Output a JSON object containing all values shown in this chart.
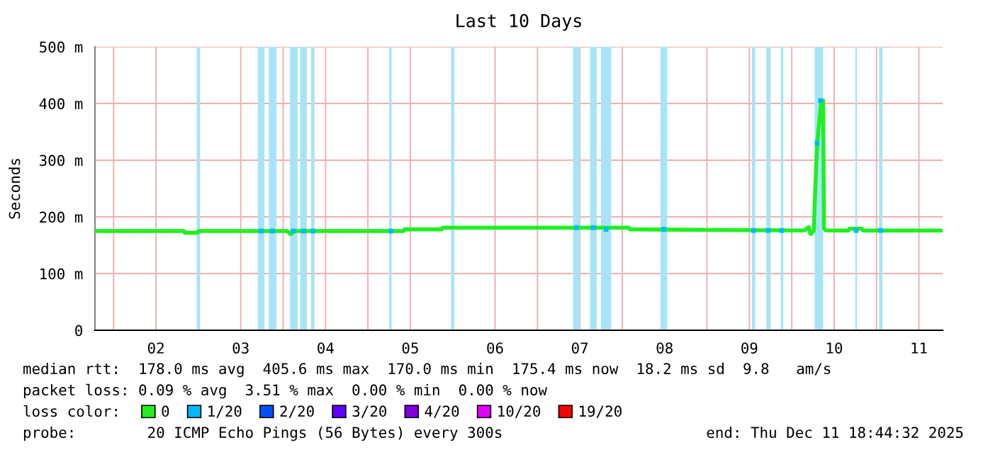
{
  "chart_data": {
    "type": "line",
    "title": "Last 10 Days",
    "ylabel": "Seconds",
    "xlim": [
      0.78,
      10.78
    ],
    "ylim": [
      0,
      500
    ],
    "xticks": [
      {
        "value": 1,
        "label": null
      },
      {
        "value": 1.5,
        "label": "02"
      },
      {
        "value": 2,
        "label": null
      },
      {
        "value": 2.5,
        "label": "03"
      },
      {
        "value": 3,
        "label": null
      },
      {
        "value": 3.5,
        "label": "04"
      },
      {
        "value": 4,
        "label": null
      },
      {
        "value": 4.5,
        "label": "05"
      },
      {
        "value": 5,
        "label": null
      },
      {
        "value": 5.5,
        "label": "06"
      },
      {
        "value": 6,
        "label": null
      },
      {
        "value": 6.5,
        "label": "07"
      },
      {
        "value": 7,
        "label": null
      },
      {
        "value": 7.5,
        "label": "08"
      },
      {
        "value": 8,
        "label": null
      },
      {
        "value": 8.5,
        "label": "09"
      },
      {
        "value": 9,
        "label": null
      },
      {
        "value": 9.5,
        "label": "10"
      },
      {
        "value": 10,
        "label": null
      },
      {
        "value": 10.5,
        "label": "11"
      }
    ],
    "yticks": [
      0,
      {
        "value": 100,
        "label": "100 m"
      },
      {
        "value": 200,
        "label": "200 m"
      },
      {
        "value": 300,
        "label": "300 m"
      },
      {
        "value": 400,
        "label": "400 m"
      },
      {
        "value": 500,
        "label": "500 m"
      }
    ],
    "grid": true,
    "legend": "bottom",
    "legend_title": "loss color:",
    "series": [
      {
        "name": "0",
        "color": "#20f020",
        "x": [
          0.78,
          1.83,
          1.84,
          1.99,
          2.0,
          3.05,
          3.08,
          3.1,
          3.11,
          4.42,
          4.43,
          4.87,
          4.88,
          7.08,
          7.09,
          9.15,
          9.2,
          9.22,
          9.23,
          9.25,
          9.26,
          9.27,
          9.3,
          9.35,
          9.37,
          9.38,
          9.4,
          9.67,
          9.68,
          9.83,
          9.84,
          10.78
        ],
        "values": [
          175,
          175,
          172,
          172,
          175,
          175,
          170,
          170,
          175,
          175,
          178,
          178,
          181,
          181,
          178,
          176,
          182,
          170,
          170,
          175,
          175,
          220,
          330,
          405,
          405,
          180,
          176,
          176,
          179,
          179,
          176,
          176
        ]
      },
      {
        "name": "1/20",
        "color": "#00b8ff",
        "type": "scatter",
        "x": [
          2.74,
          2.87,
          3.12,
          3.24,
          3.35,
          4.27,
          6.46,
          6.66,
          6.81,
          7.49,
          8.55,
          8.72,
          8.88,
          9.3,
          9.34,
          9.76,
          10.05
        ],
        "values": [
          175,
          175,
          175,
          175,
          175,
          175,
          181,
          181,
          178,
          178,
          176,
          176,
          176,
          330,
          405,
          176,
          176
        ]
      },
      {
        "name": "2/20",
        "color": "#0050ff",
        "type": "scatter"
      },
      {
        "name": "3/20",
        "color": "#6000ff",
        "type": "scatter"
      },
      {
        "name": "4/20",
        "color": "#8000e0",
        "type": "scatter"
      },
      {
        "name": "10/20",
        "color": "#e000ff",
        "type": "scatter"
      },
      {
        "name": "19/20",
        "color": "#ff0000",
        "type": "scatter"
      }
    ],
    "bands": [
      {
        "axis": "x",
        "from": 1.98,
        "to": 2.02,
        "color": "#a8e4f8"
      },
      {
        "axis": "x",
        "from": 2.7,
        "to": 2.78,
        "color": "#a8e4f8"
      },
      {
        "axis": "x",
        "from": 2.83,
        "to": 2.92,
        "color": "#a8e4f8"
      },
      {
        "axis": "x",
        "from": 3.08,
        "to": 3.17,
        "color": "#a8e4f8"
      },
      {
        "axis": "x",
        "from": 3.2,
        "to": 3.28,
        "color": "#a8e4f8"
      },
      {
        "axis": "x",
        "from": 3.33,
        "to": 3.37,
        "color": "#a8e4f8"
      },
      {
        "axis": "x",
        "from": 4.25,
        "to": 4.28,
        "color": "#a8e4f8"
      },
      {
        "axis": "x",
        "from": 4.98,
        "to": 5.02,
        "color": "#a8e4f8"
      },
      {
        "axis": "x",
        "from": 6.42,
        "to": 6.5,
        "color": "#a8e4f8"
      },
      {
        "axis": "x",
        "from": 6.62,
        "to": 6.7,
        "color": "#a8e4f8"
      },
      {
        "axis": "x",
        "from": 6.75,
        "to": 6.87,
        "color": "#a8e4f8"
      },
      {
        "axis": "x",
        "from": 7.45,
        "to": 7.53,
        "color": "#a8e4f8"
      },
      {
        "axis": "x",
        "from": 8.53,
        "to": 8.57,
        "color": "#a8e4f8"
      },
      {
        "axis": "x",
        "from": 8.7,
        "to": 8.75,
        "color": "#a8e4f8"
      },
      {
        "axis": "x",
        "from": 8.87,
        "to": 8.9,
        "color": "#a8e4f8"
      },
      {
        "axis": "x",
        "from": 9.27,
        "to": 9.37,
        "color": "#a8e4f8"
      },
      {
        "axis": "x",
        "from": 9.75,
        "to": 9.77,
        "color": "#a8e4f8"
      },
      {
        "axis": "x",
        "from": 10.03,
        "to": 10.07,
        "color": "#a8e4f8"
      }
    ],
    "annotations": [
      "median rtt:  178.0 ms avg  405.6 ms max  170.0 ms min  175.4 ms now  18.2 ms sd  9.8   am/s",
      "packet loss: 0.09 % avg  3.51 % max  0.00 % min  0.00 % now",
      "probe:        20 ICMP Echo Pings (56 Bytes) every 300s",
      "end: Thu Dec 11 18:44:32 2025"
    ]
  }
}
